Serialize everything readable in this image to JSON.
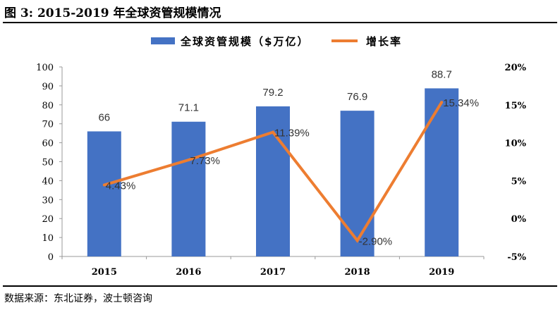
{
  "figure": {
    "title": "图 3: 2015-2019 年全球资管规模情况",
    "source": "数据来源：东北证券，波士顿咨询"
  },
  "chart_data": {
    "type": "bar",
    "categories": [
      "2015",
      "2016",
      "2017",
      "2018",
      "2019"
    ],
    "series": [
      {
        "name": "全球资管规模（$万亿）",
        "type": "bar",
        "axis": "left",
        "color": "#4472C4",
        "values": [
          66,
          71.1,
          79.2,
          76.9,
          88.7
        ],
        "labels": [
          "66",
          "71.1",
          "79.2",
          "76.9",
          "88.7"
        ]
      },
      {
        "name": "增长率",
        "type": "line",
        "axis": "right",
        "color": "#ED7D31",
        "values": [
          4.43,
          7.73,
          11.39,
          -2.9,
          15.34
        ],
        "labels": [
          "4.43%",
          "7.73%",
          "11.39%",
          "-2.90%",
          "15.34%"
        ]
      }
    ],
    "y_left": {
      "min": 0,
      "max": 100,
      "step": 10,
      "ticks": [
        "0",
        "10",
        "20",
        "30",
        "40",
        "50",
        "60",
        "70",
        "80",
        "90",
        "100"
      ]
    },
    "y_right": {
      "min": -5,
      "max": 20,
      "step": 5,
      "ticks": [
        "-5%",
        "0%",
        "5%",
        "10%",
        "15%",
        "20%"
      ]
    },
    "legend_position": "top",
    "grid": false
  }
}
